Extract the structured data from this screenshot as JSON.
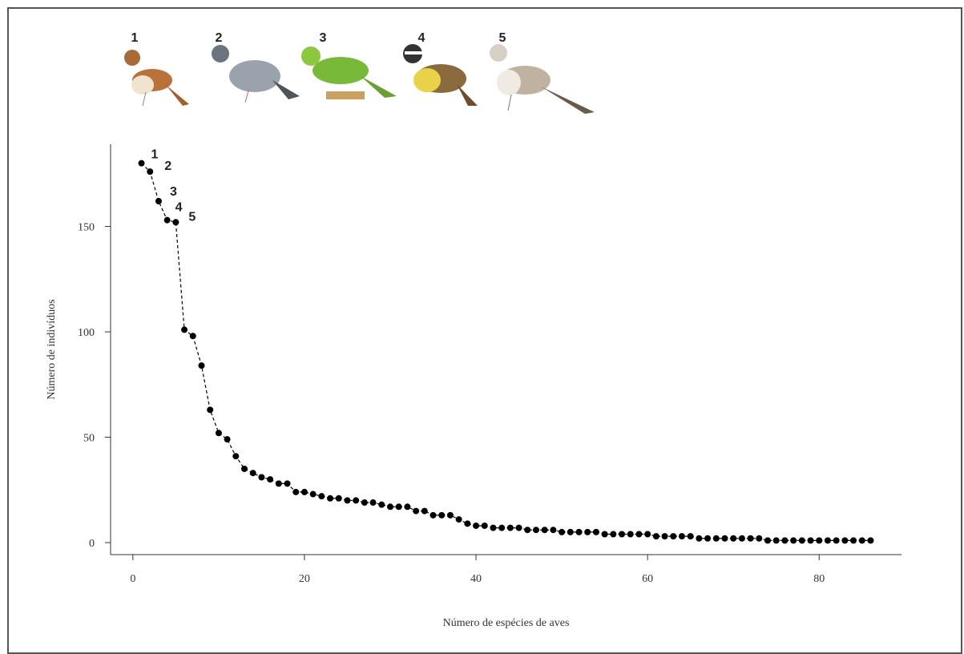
{
  "chart_data": {
    "type": "scatter",
    "x_label": "Número de espécies de aves",
    "y_label": "Número de indivíduos",
    "image_labels": [
      "1",
      "2",
      "3",
      "4",
      "5"
    ],
    "point_labels": [
      "1",
      "2",
      "3",
      "4",
      "5"
    ],
    "x": [
      1,
      2,
      3,
      4,
      5,
      6,
      7,
      8,
      9,
      10,
      11,
      12,
      13,
      14,
      15,
      16,
      17,
      18,
      19,
      20,
      21,
      22,
      23,
      24,
      25,
      26,
      27,
      28,
      29,
      30,
      31,
      32,
      33,
      34,
      35,
      36,
      37,
      38,
      39,
      40,
      41,
      42,
      43,
      44,
      45,
      46,
      47,
      48,
      49,
      50,
      51,
      52,
      53,
      54,
      55,
      56,
      57,
      58,
      59,
      60,
      61,
      62,
      63,
      64,
      65,
      66,
      67,
      68,
      69,
      70,
      71,
      72,
      73,
      74,
      75,
      76,
      77,
      78,
      79,
      80,
      81,
      82,
      83,
      84,
      85,
      86
    ],
    "series": [
      {
        "color": "#000000",
        "values": [
          180,
          176,
          162,
          153,
          152,
          101,
          98,
          84,
          63,
          52,
          49,
          41,
          35,
          33,
          31,
          30,
          28,
          28,
          24,
          24,
          23,
          22,
          21,
          21,
          20,
          20,
          19,
          19,
          18,
          17,
          17,
          17,
          15,
          15,
          13,
          13,
          13,
          11,
          9,
          8,
          8,
          7,
          7,
          7,
          7,
          6,
          6,
          6,
          6,
          5,
          5,
          5,
          5,
          5,
          4,
          4,
          4,
          4,
          4,
          4,
          3,
          3,
          3,
          3,
          3,
          2,
          2,
          2,
          2,
          2,
          2,
          2,
          2,
          1,
          1,
          1,
          1,
          1,
          1,
          1,
          1,
          1,
          1,
          1,
          1,
          1
        ]
      }
    ],
    "xlim": [
      -2.6,
      89.6
    ],
    "ylim": [
      -5.7,
      189
    ],
    "xticks": [
      0,
      20,
      40,
      60,
      80
    ],
    "yticks": [
      0,
      50,
      100,
      150
    ],
    "line_style": "dashed"
  }
}
